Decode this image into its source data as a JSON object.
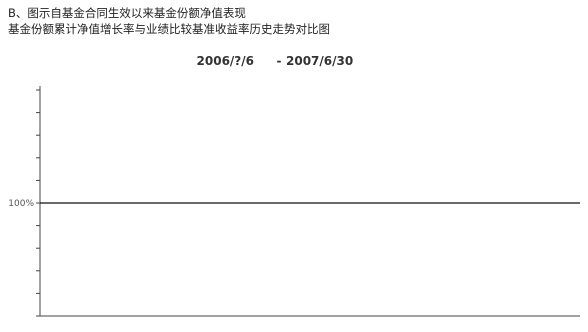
{
  "header": {
    "line1": "B、图示自基金合同生效以来基金份额净值表现",
    "line2": "基金份额累计净值增长率与业绩比较基准收益率历史走势对比图"
  },
  "chart_data": {
    "type": "line",
    "title": "",
    "subtitle_from": "2006/?/6",
    "subtitle_to": "2007/6/30",
    "xlabel": "",
    "ylabel": "",
    "y_ticks": [
      {
        "value": 0,
        "label": ""
      },
      {
        "value": 20,
        "label": ""
      },
      {
        "value": 40,
        "label": ""
      },
      {
        "value": 60,
        "label": ""
      },
      {
        "value": 80,
        "label": ""
      },
      {
        "value": 100,
        "label": "100%"
      },
      {
        "value": 120,
        "label": ""
      },
      {
        "value": 140,
        "label": ""
      },
      {
        "value": 160,
        "label": ""
      },
      {
        "value": 180,
        "label": ""
      },
      {
        "value": 200,
        "label": ""
      }
    ],
    "ylim": [
      0,
      200
    ],
    "reference_line": 100,
    "series": [
      {
        "name": "",
        "color": "#111111",
        "width": 1.3,
        "values": []
      },
      {
        "name": "",
        "color": "#9a9a9a",
        "width": 1.3,
        "values": []
      }
    ],
    "legend": "none",
    "grid": false
  }
}
